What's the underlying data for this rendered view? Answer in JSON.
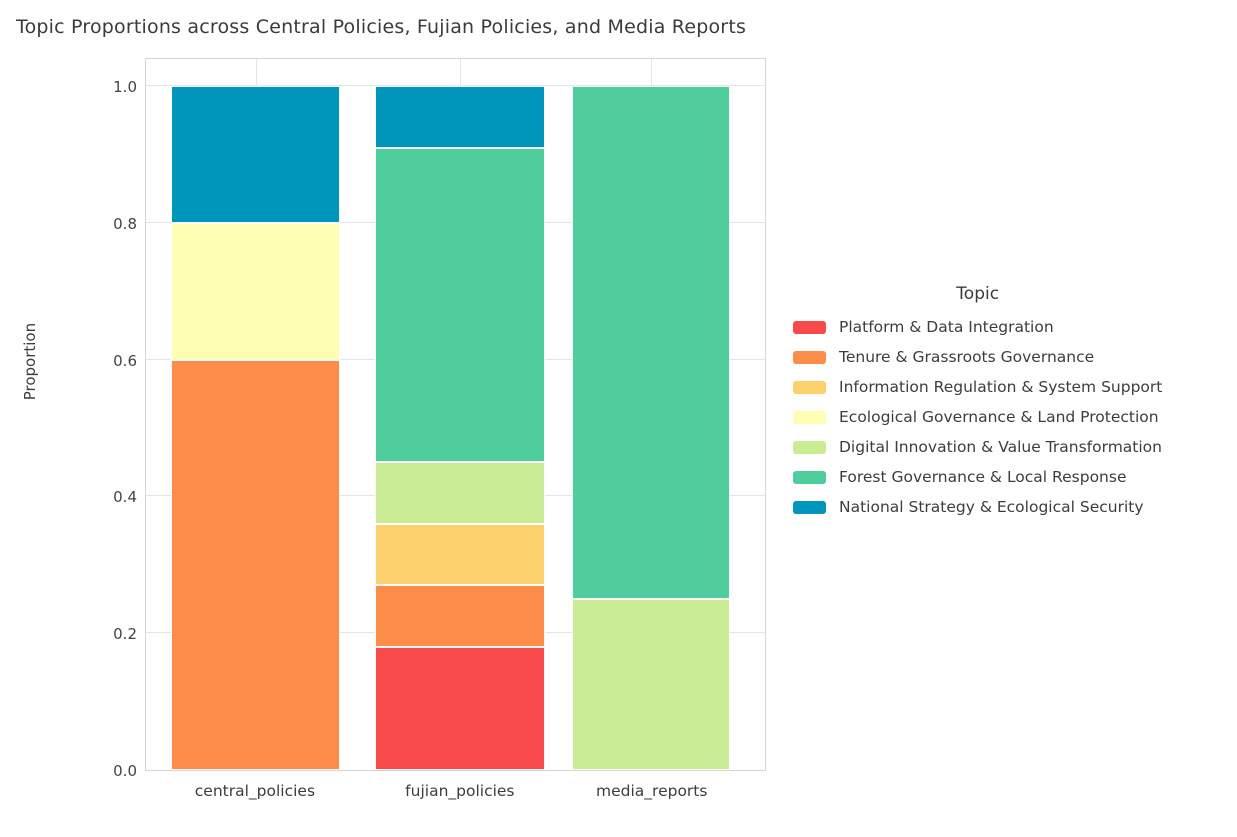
{
  "title": "Topic Proportions across Central Policies, Fujian Policies, and Media Reports",
  "colors": {
    "background": "#ffffff",
    "grid": "#e5e5e5",
    "panel_border": "#d6d6d6",
    "title_text": "#3b3b3b",
    "tick_text": "#444444"
  },
  "chart_data": {
    "type": "bar",
    "stacked": true,
    "title": "Topic Proportions across Central Policies, Fujian Policies, and Media Reports",
    "xlabel": "",
    "ylabel": "Proportion",
    "ylim": [
      0.0,
      1.0
    ],
    "y_ticks": [
      0.0,
      0.2,
      0.4,
      0.6,
      0.8,
      1.0
    ],
    "grid": true,
    "legend_title": "Topic",
    "legend_position": "right of plot",
    "categories": [
      "central_policies",
      "fujian_policies",
      "media_reports"
    ],
    "series": [
      {
        "name": "Platform & Data Integration",
        "color": "#f84a4a",
        "values": [
          0.0,
          0.18,
          0.0
        ]
      },
      {
        "name": "Tenure & Grassroots Governance",
        "color": "#fc8d49",
        "values": [
          0.6,
          0.09,
          0.0
        ]
      },
      {
        "name": "Information Regulation & System Support",
        "color": "#fdd06e",
        "values": [
          0.0,
          0.09,
          0.0
        ]
      },
      {
        "name": "Ecological Governance & Land Protection",
        "color": "#feffb2",
        "values": [
          0.2,
          0.0,
          0.0
        ]
      },
      {
        "name": "Digital Innovation & Value Transformation",
        "color": "#c9ec94",
        "values": [
          0.0,
          0.09,
          0.25
        ]
      },
      {
        "name": "Forest Governance & Local Response",
        "color": "#50cd9d",
        "values": [
          0.0,
          0.46,
          0.75
        ]
      },
      {
        "name": "National Strategy & Ecological Security",
        "color": "#0095bb",
        "values": [
          0.2,
          0.09,
          0.0
        ]
      }
    ]
  }
}
